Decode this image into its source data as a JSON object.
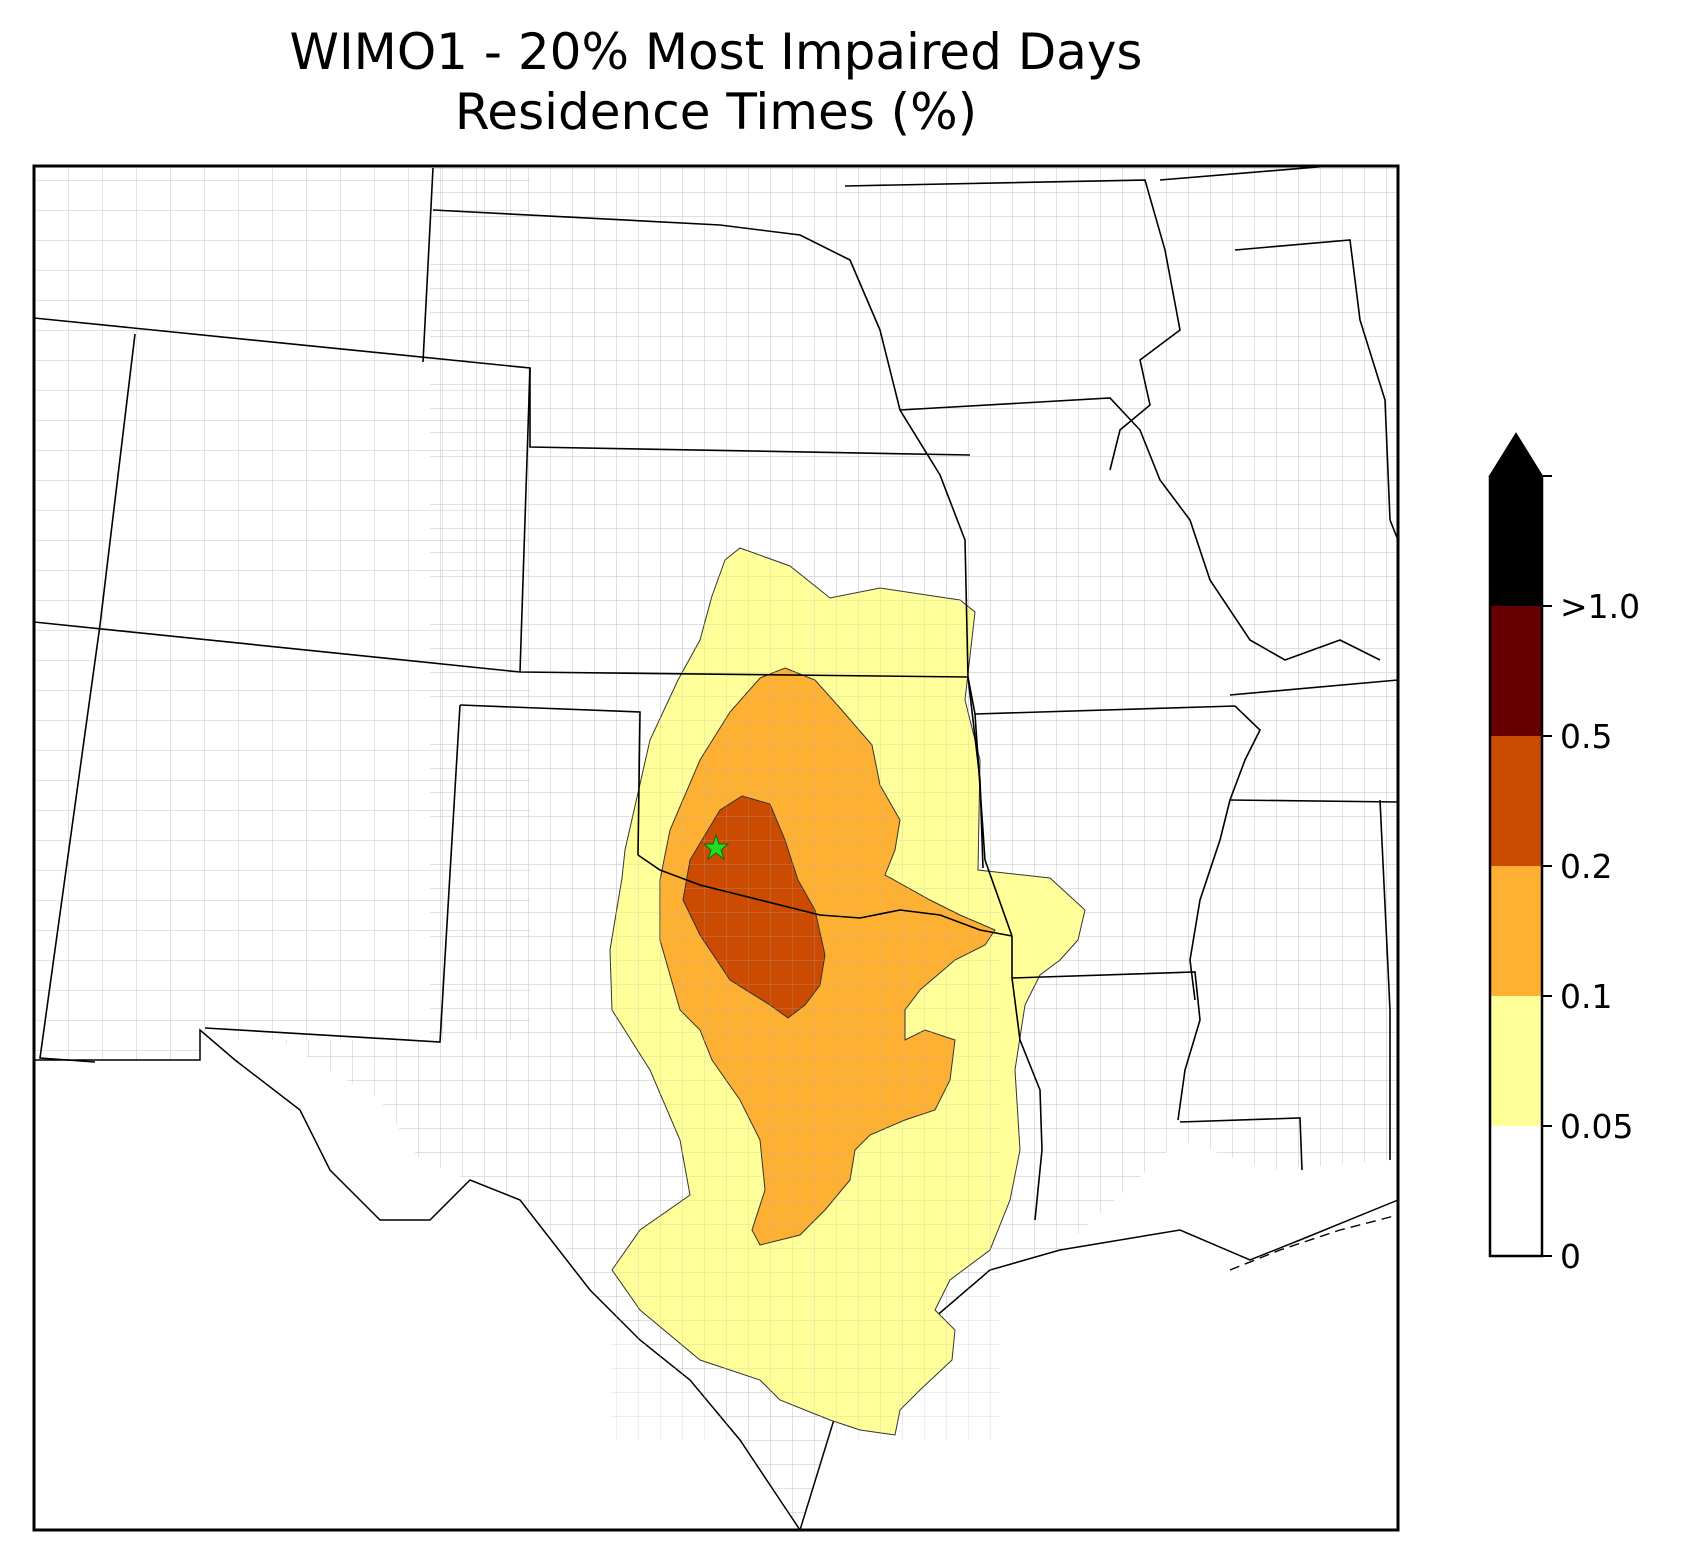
{
  "title": {
    "line1": "WIMO1 - 20% Most Impaired Days",
    "line2": "Residence Times (%)"
  },
  "map": {
    "site_marker": "star-icon",
    "site_marker_color": "#22dd22",
    "state_border_color": "#000000",
    "county_border_color": "#aaaaaa"
  },
  "colorbar": {
    "extend": "max",
    "levels": [
      0,
      0.05,
      0.1,
      0.2,
      0.5,
      1.0
    ],
    "tick_labels": [
      "0",
      "0.05",
      "0.1",
      "0.2",
      "0.5",
      ">1.0"
    ],
    "colors": [
      "#ffffff",
      "#ffff99",
      "#feb032",
      "#cc4b02",
      "#660000",
      "#000000"
    ]
  }
}
